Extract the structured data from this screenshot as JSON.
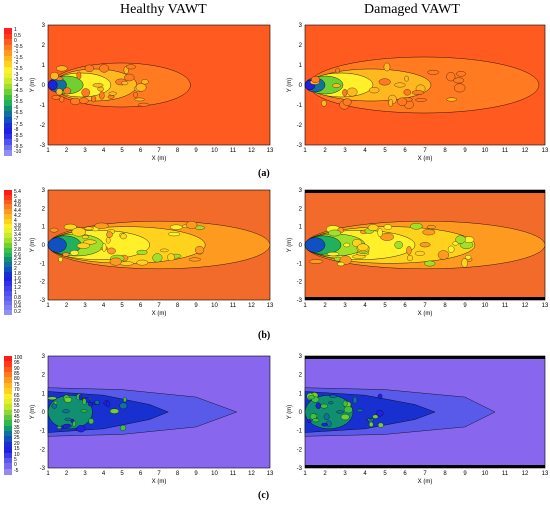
{
  "titles": {
    "left": "Healthy VAWT",
    "right": "Damaged VAWT"
  },
  "row_labels": [
    "(a)",
    "(b)",
    "(c)"
  ],
  "colors": {
    "background_a": "#ff5a1f",
    "background_b": "#f26b2a",
    "background_c": "#8866ee"
  },
  "chart_data": [
    {
      "type": "heatmap",
      "panel": "a-healthy",
      "xlabel": "X (m)",
      "ylabel": "Y (m)",
      "xlim": [
        1,
        13
      ],
      "ylim": [
        -3,
        3
      ],
      "xticks": [
        "1",
        "2",
        "3",
        "4",
        "5",
        "6",
        "7",
        "8",
        "9",
        "10",
        "11",
        "12",
        "13"
      ],
      "yticks": [
        "3",
        "2",
        "1",
        "0",
        "-1",
        "-2",
        "-3"
      ],
      "colorbar": [
        "1",
        "0.5",
        "0",
        "-0.5",
        "-1",
        "-1.5",
        "-2",
        "-2.5",
        "-3",
        "-3.5",
        "-4",
        "-4.5",
        "-5",
        "-5.5",
        "-6",
        "-6.5",
        "-7",
        "-7.5",
        "-8",
        "-8.5",
        "-9",
        "-9.5",
        "-10"
      ]
    },
    {
      "type": "heatmap",
      "panel": "a-damaged",
      "xlabel": "X (m)",
      "ylabel": "Y (m)",
      "xlim": [
        1,
        13
      ],
      "ylim": [
        -3,
        3
      ],
      "xticks": [
        "1",
        "2",
        "3",
        "4",
        "5",
        "6",
        "7",
        "8",
        "9",
        "10",
        "11",
        "12",
        "13"
      ],
      "yticks": [
        "3",
        "2",
        "1",
        "0",
        "-1",
        "-2",
        "-3"
      ]
    },
    {
      "type": "heatmap",
      "panel": "b-healthy",
      "xlabel": "X (m)",
      "ylabel": "Y (m)",
      "xlim": [
        1,
        13
      ],
      "ylim": [
        -3,
        3
      ],
      "xticks": [
        "1",
        "2",
        "3",
        "4",
        "5",
        "6",
        "7",
        "8",
        "9",
        "10",
        "11",
        "12",
        "13"
      ],
      "yticks": [
        "3",
        "2",
        "1",
        "0",
        "-1",
        "-2",
        "-3"
      ],
      "colorbar": [
        "5.4",
        "5",
        "4.8",
        "4.6",
        "4.4",
        "4.2",
        "4",
        "3.8",
        "3.6",
        "3.4",
        "3.2",
        "3",
        "2.8",
        "2.6",
        "2.4",
        "2.2",
        "2",
        "1.8",
        "1.6",
        "1.4",
        "1.2",
        "1",
        "0.8",
        "0.6",
        "0.4",
        "0.2"
      ]
    },
    {
      "type": "heatmap",
      "panel": "b-damaged",
      "xlabel": "X (m)",
      "ylabel": "Y (m)",
      "xlim": [
        1,
        13
      ],
      "ylim": [
        -3,
        3
      ],
      "xticks": [
        "1",
        "2",
        "3",
        "4",
        "5",
        "6",
        "7",
        "8",
        "9",
        "10",
        "11",
        "12",
        "13"
      ],
      "yticks": [
        "3",
        "2",
        "1",
        "0",
        "-1",
        "-2",
        "-3"
      ]
    },
    {
      "type": "heatmap",
      "panel": "c-healthy",
      "xlabel": "X (m)",
      "ylabel": "Y (m)",
      "xlim": [
        1,
        13
      ],
      "ylim": [
        -3,
        3
      ],
      "xticks": [
        "1",
        "2",
        "3",
        "4",
        "5",
        "6",
        "7",
        "8",
        "9",
        "10",
        "11",
        "12",
        "13"
      ],
      "yticks": [
        "3",
        "2",
        "1",
        "0",
        "-1",
        "-2",
        "-3"
      ],
      "colorbar": [
        "100",
        "95",
        "90",
        "85",
        "80",
        "75",
        "70",
        "65",
        "60",
        "55",
        "50",
        "45",
        "40",
        "35",
        "30",
        "25",
        "20",
        "15",
        "10",
        "5",
        "0",
        "-5"
      ]
    },
    {
      "type": "heatmap",
      "panel": "c-damaged",
      "xlabel": "X (m)",
      "ylabel": "Y (m)",
      "xlim": [
        1,
        13
      ],
      "ylim": [
        -3,
        3
      ],
      "xticks": [
        "1",
        "2",
        "3",
        "4",
        "5",
        "6",
        "7",
        "8",
        "9",
        "10",
        "11",
        "12",
        "13"
      ],
      "yticks": [
        "3",
        "2",
        "1",
        "0",
        "-1",
        "-2",
        "-3"
      ]
    }
  ]
}
